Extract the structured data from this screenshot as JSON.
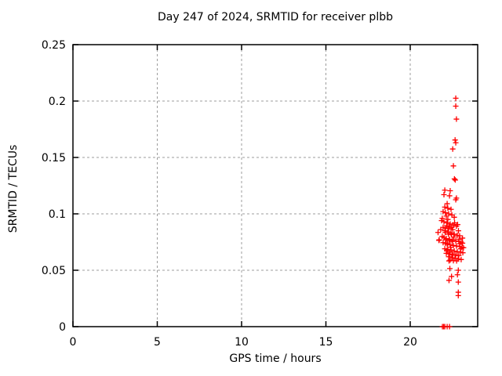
{
  "chart_data": {
    "type": "scatter",
    "title": "Day 247 of 2024, SRMTID for receiver plbb",
    "xlabel": "GPS time / hours",
    "ylabel": "SRMTID / TECUs",
    "xlim": [
      0,
      24
    ],
    "ylim": [
      0,
      0.25
    ],
    "xticks": {
      "values": [
        0,
        5,
        10,
        15,
        20
      ],
      "labels": [
        "0",
        "5",
        "10",
        "15",
        "20"
      ]
    },
    "yticks": {
      "values": [
        0,
        0.05,
        0.1,
        0.15,
        0.2,
        0.25
      ],
      "labels": [
        "0",
        "0.05",
        "0.1",
        "0.15",
        "0.2",
        "0.25"
      ]
    },
    "grid": true,
    "legend": "none",
    "marker": "plus",
    "colors": {
      "marker": "#ff0000",
      "grid": "#9c9c9c",
      "axis": "#000000",
      "background": "#ffffff"
    },
    "series_name": "SRMTID",
    "points": [
      [
        22.7,
        0.2025
      ],
      [
        22.7,
        0.1955
      ],
      [
        22.74,
        0.184
      ],
      [
        22.66,
        0.1655
      ],
      [
        22.7,
        0.163
      ],
      [
        22.52,
        0.1575
      ],
      [
        22.56,
        0.1425
      ],
      [
        22.62,
        0.131
      ],
      [
        22.67,
        0.13
      ],
      [
        22.05,
        0.121
      ],
      [
        22.37,
        0.1205
      ],
      [
        22.0,
        0.117
      ],
      [
        22.33,
        0.116
      ],
      [
        22.74,
        0.114
      ],
      [
        22.7,
        0.1125
      ],
      [
        22.19,
        0.109
      ],
      [
        22.05,
        0.106
      ],
      [
        22.23,
        0.105
      ],
      [
        22.42,
        0.104
      ],
      [
        21.95,
        0.102
      ],
      [
        22.09,
        0.101
      ],
      [
        22.28,
        0.1
      ],
      [
        22.47,
        0.099
      ],
      [
        22.14,
        0.098
      ],
      [
        22.61,
        0.097
      ],
      [
        21.9,
        0.096
      ],
      [
        22.23,
        0.095
      ],
      [
        21.86,
        0.094
      ],
      [
        22.0,
        0.093
      ],
      [
        22.19,
        0.092
      ],
      [
        22.63,
        0.092
      ],
      [
        22.37,
        0.091
      ],
      [
        22.81,
        0.0905
      ],
      [
        22.56,
        0.09
      ],
      [
        22.16,
        0.0895
      ],
      [
        22.74,
        0.089
      ],
      [
        22.31,
        0.0885
      ],
      [
        21.95,
        0.088
      ],
      [
        22.46,
        0.088
      ],
      [
        22.09,
        0.0875
      ],
      [
        22.28,
        0.087
      ],
      [
        21.81,
        0.086
      ],
      [
        22.52,
        0.086
      ],
      [
        22.05,
        0.085
      ],
      [
        22.86,
        0.085
      ],
      [
        22.23,
        0.084
      ],
      [
        21.65,
        0.0835
      ],
      [
        22.08,
        0.0835
      ],
      [
        22.42,
        0.083
      ],
      [
        22.26,
        0.082
      ],
      [
        22.61,
        0.082
      ],
      [
        22.44,
        0.0815
      ],
      [
        22.79,
        0.081
      ],
      [
        22.93,
        0.0805
      ],
      [
        21.9,
        0.08
      ],
      [
        22.59,
        0.0795
      ],
      [
        22.0,
        0.079
      ],
      [
        23.1,
        0.0785
      ],
      [
        22.14,
        0.078
      ],
      [
        22.9,
        0.0775
      ],
      [
        22.33,
        0.0775
      ],
      [
        21.72,
        0.077
      ],
      [
        22.12,
        0.077
      ],
      [
        22.51,
        0.077
      ],
      [
        22.3,
        0.0765
      ],
      [
        21.7,
        0.0765
      ],
      [
        22.7,
        0.076
      ],
      [
        22.88,
        0.0755
      ],
      [
        22.48,
        0.0755
      ],
      [
        23.02,
        0.075
      ],
      [
        21.95,
        0.0745
      ],
      [
        23.1,
        0.074
      ],
      [
        22.09,
        0.074
      ],
      [
        22.95,
        0.0735
      ],
      [
        22.21,
        0.0735
      ],
      [
        22.19,
        0.073
      ],
      [
        22.37,
        0.0725
      ],
      [
        22.56,
        0.072
      ],
      [
        22.74,
        0.0715
      ],
      [
        22.93,
        0.071
      ],
      [
        23.07,
        0.0705
      ],
      [
        22.39,
        0.0705
      ],
      [
        23.16,
        0.07
      ],
      [
        22.05,
        0.069
      ],
      [
        23.0,
        0.069
      ],
      [
        22.23,
        0.0685
      ],
      [
        22.42,
        0.068
      ],
      [
        22.17,
        0.0675
      ],
      [
        22.61,
        0.067
      ],
      [
        22.79,
        0.0665
      ],
      [
        22.35,
        0.066
      ],
      [
        22.98,
        0.066
      ],
      [
        23.12,
        0.0655
      ],
      [
        22.14,
        0.065
      ],
      [
        22.33,
        0.0645
      ],
      [
        22.51,
        0.064
      ],
      [
        22.53,
        0.0635
      ],
      [
        22.7,
        0.0635
      ],
      [
        22.88,
        0.063
      ],
      [
        22.28,
        0.062
      ],
      [
        22.47,
        0.061
      ],
      [
        22.65,
        0.0605
      ],
      [
        22.84,
        0.06
      ],
      [
        23.02,
        0.0595
      ],
      [
        22.37,
        0.059
      ],
      [
        22.56,
        0.0585
      ],
      [
        22.3,
        0.0583
      ],
      [
        22.75,
        0.0583
      ],
      [
        22.35,
        0.0515
      ],
      [
        22.85,
        0.05
      ],
      [
        22.8,
        0.046
      ],
      [
        22.45,
        0.0445
      ],
      [
        22.3,
        0.041
      ],
      [
        22.85,
        0.0395
      ],
      [
        22.85,
        0.0305
      ],
      [
        22.85,
        0.0275
      ],
      [
        21.91,
        0.0
      ],
      [
        21.98,
        0.0
      ],
      [
        22.05,
        0.0
      ],
      [
        22.19,
        0.0
      ],
      [
        22.33,
        0.0
      ]
    ]
  }
}
